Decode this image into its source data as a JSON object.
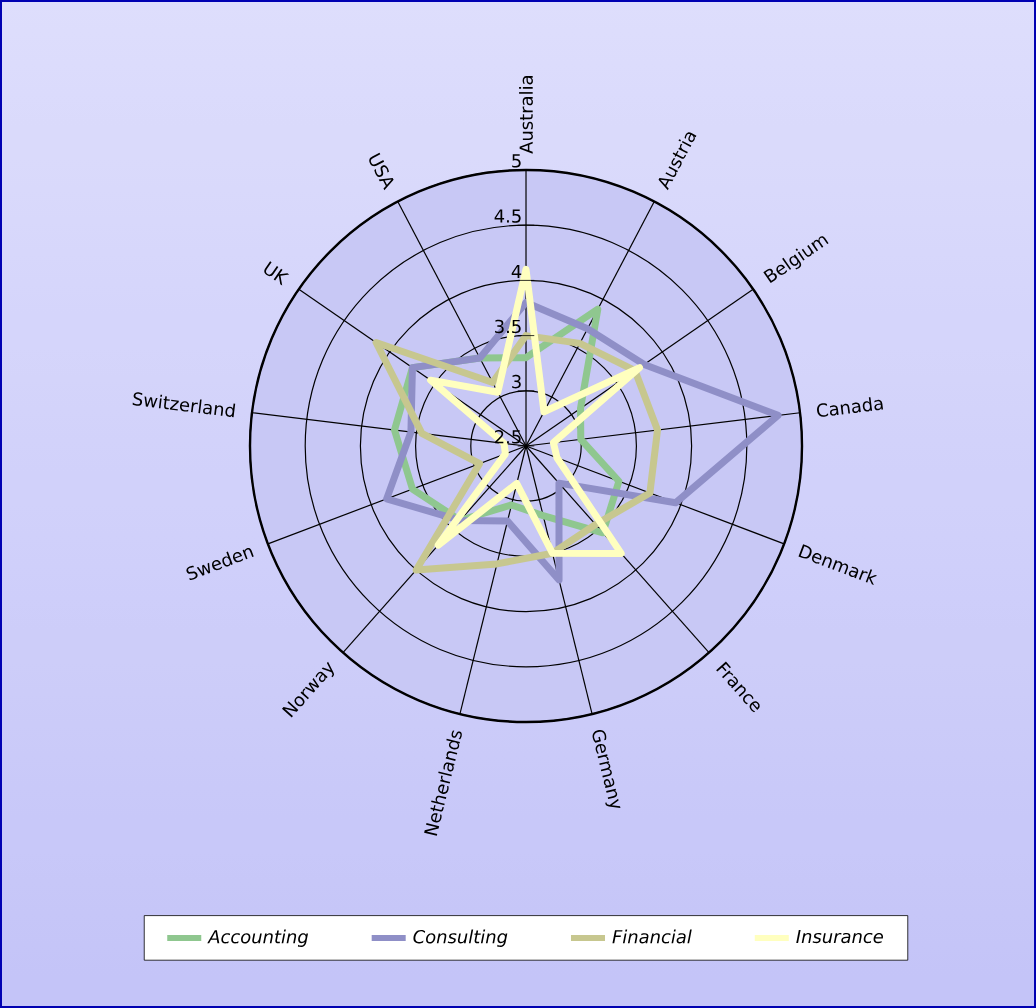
{
  "chart_data": {
    "type": "radar",
    "categories": [
      "Australia",
      "Austria",
      "Belgium",
      "Canada",
      "Denmark",
      "France",
      "Germany",
      "Netherlands",
      "Norway",
      "Sweden",
      "Switzerland",
      "UK",
      "USA"
    ],
    "series": [
      {
        "name": "Accounting",
        "color": "#8fc78f",
        "values": [
          3.3,
          3.9,
          3.1,
          3.0,
          3.4,
          3.55,
          3.15,
          3.05,
          3.4,
          3.6,
          3.7,
          3.75,
          3.4
        ]
      },
      {
        "name": "Consulting",
        "color": "#8f8fc7",
        "values": [
          3.8,
          3.7,
          3.8,
          4.8,
          3.95,
          2.95,
          3.75,
          3.2,
          3.4,
          3.85,
          3.55,
          3.75,
          3.4
        ]
      },
      {
        "name": "Financial",
        "color": "#c7c78f",
        "values": [
          3.5,
          3.55,
          3.7,
          3.7,
          3.7,
          3.45,
          3.5,
          3.6,
          4.0,
          2.95,
          3.45,
          4.15,
          3.15
        ]
      },
      {
        "name": "Insurance",
        "color": "#ffffbf",
        "values": [
          4.1,
          2.85,
          3.75,
          2.75,
          2.8,
          3.8,
          3.5,
          2.85,
          3.7,
          2.7,
          2.7,
          3.55,
          3.05
        ]
      }
    ],
    "ylim": [
      2.5,
      5
    ],
    "yticks": [
      2.5,
      3,
      3.5,
      4,
      4.5,
      5
    ],
    "grid": true,
    "legend": "bottom"
  }
}
